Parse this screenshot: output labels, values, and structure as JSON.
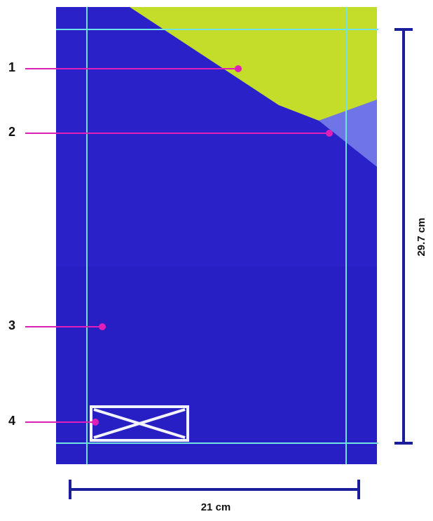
{
  "callouts": [
    {
      "label": "1"
    },
    {
      "label": "2"
    },
    {
      "label": "3"
    },
    {
      "label": "4"
    }
  ],
  "dimensions": {
    "height_label": "29.7 cm",
    "width_label": "21 cm"
  },
  "colors": {
    "paper_blue": "#2a22c8",
    "lime": "#c4dc2a",
    "light_blue": "#6f74e6",
    "guide_cyan": "#6fe3e3",
    "callout_magenta": "#e01fb8",
    "dimension_navy": "#1b1e9a",
    "box_white": "#f3f3ff"
  }
}
